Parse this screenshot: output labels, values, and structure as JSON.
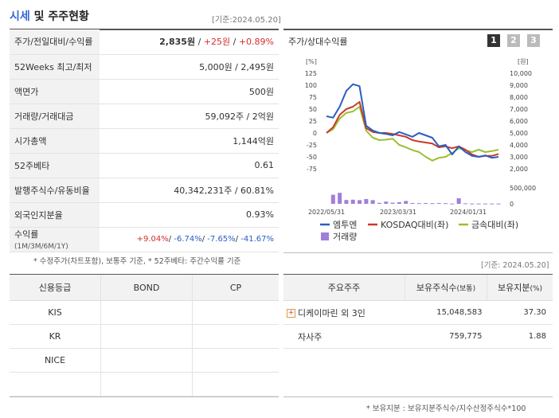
{
  "header": {
    "title_main": "시세",
    "title_rest": " 및 주주현황",
    "base_date": "[기준:2024.05.20]"
  },
  "price_table": {
    "rows": [
      {
        "label": "주가/전일대비/수익률",
        "price": "2,835원",
        "sep1": " / ",
        "change": "+25원",
        "sep2": " / ",
        "rate": "+0.89%"
      },
      {
        "label": "52Weeks 최고/최저",
        "value": "5,000원 / 2,495원"
      },
      {
        "label": "액면가",
        "value": "500원"
      },
      {
        "label": "거래량/거래대금",
        "value": "59,092주 / 2억원"
      },
      {
        "label": "시가총액",
        "value": "1,144억원"
      },
      {
        "label": "52주베타",
        "value": "0.61"
      },
      {
        "label": "발행주식수/유동비율",
        "value": "40,342,231주 / 60.81%"
      },
      {
        "label": "외국인지분율",
        "value": "0.93%"
      }
    ],
    "returns": {
      "label": "수익률",
      "label_sub": "(1M/3M/6M/1Y)",
      "r1": "+9.04%",
      "r2": "-6.74%",
      "r3": "-7.65%",
      "r4": "-41.67%",
      "sep": "/ "
    },
    "note": "* 수정주가(차트포함), 보통주 기준, * 52주베타: 주간수익률 기준"
  },
  "chart": {
    "title": "주가/상대수익률",
    "pages": [
      "1",
      "2",
      "3"
    ],
    "colors": {
      "stock": "#2a5dc4",
      "kosdaq": "#c83a2a",
      "sector": "#9bbf2e",
      "volume": "#a07fd9"
    },
    "left_unit": "[%]",
    "right_unit": "[원]",
    "left_ticks": [
      "125",
      "100",
      "75",
      "50",
      "25",
      "0",
      "-25",
      "-50",
      "-75"
    ],
    "right_ticks": [
      "10,000",
      "9,000",
      "8,000",
      "7,000",
      "6,000",
      "5,000",
      "4,000",
      "3,000",
      "2,000"
    ],
    "vol_tick": "500,000",
    "vol_zero": "0",
    "x_ticks": [
      "2022/05/31",
      "2023/03/31",
      "2024/01/31"
    ],
    "legend": [
      {
        "label": "엠투엔",
        "color": "#2a5dc4",
        "type": "line"
      },
      {
        "label": "KOSDAQ대비(좌)",
        "color": "#c83a2a",
        "type": "line"
      },
      {
        "label": "금속대비(좌)",
        "color": "#9bbf2e",
        "type": "line"
      },
      {
        "label": "거래량",
        "color": "#a07fd9",
        "type": "box"
      }
    ]
  },
  "chart_data": {
    "type": "line",
    "x_range": [
      "2022/04",
      "2024/05"
    ],
    "ylim_left": [
      -75,
      125
    ],
    "ylim_right": [
      2000,
      10000
    ],
    "series": [
      {
        "name": "엠투엔",
        "values": [
          35,
          32,
          55,
          88,
          102,
          98,
          15,
          5,
          0,
          -2,
          -5,
          2,
          -3,
          -8,
          0,
          -5,
          -10,
          -28,
          -25,
          -45,
          -28,
          -40,
          -48,
          -50,
          -47,
          -52,
          -50
        ]
      },
      {
        "name": "KOSDAQ대비(좌)",
        "values": [
          0,
          12,
          38,
          50,
          55,
          65,
          10,
          2,
          0,
          0,
          -2,
          -5,
          -8,
          -15,
          -18,
          -20,
          -22,
          -30,
          -28,
          -32,
          -28,
          -35,
          -45,
          -50,
          -48,
          -48,
          -44
        ]
      },
      {
        "name": "금속대비(좌)",
        "values": [
          0,
          8,
          30,
          42,
          45,
          55,
          5,
          -10,
          -15,
          -14,
          -12,
          -25,
          -30,
          -36,
          -40,
          -50,
          -58,
          -52,
          -50,
          -42,
          -32,
          -36,
          -40,
          -35,
          -40,
          -38,
          -35
        ]
      }
    ],
    "volume": [
      0,
      285000,
      345000,
      120000,
      130000,
      115000,
      150000,
      115000,
      30000,
      70000,
      35000,
      50000,
      90000,
      25000,
      20000,
      25000,
      20000,
      25000,
      20000,
      10000,
      175000,
      15000,
      10000,
      10000,
      10000,
      10000,
      10000
    ]
  },
  "credit_table": {
    "headers": [
      "신용등급",
      "BOND",
      "CP"
    ],
    "rows": [
      [
        "KIS",
        "",
        ""
      ],
      [
        "KR",
        "",
        ""
      ],
      [
        "NICE",
        "",
        ""
      ],
      [
        "",
        "",
        ""
      ]
    ]
  },
  "shareholders": {
    "base_date": "[기준: 2024.05.20]",
    "headers": {
      "holder": "주요주주",
      "shares": "보유주식수",
      "shares_unit": "(보통)",
      "ratio": "보유지분",
      "ratio_unit": "(%)"
    },
    "rows": [
      {
        "name": "디케이마린 외 3인",
        "shares": "15,048,583",
        "ratio": "37.30",
        "expand": "+"
      },
      {
        "name": "자사주",
        "shares": "759,775",
        "ratio": "1.88",
        "expand": ""
      }
    ],
    "note": "* 보유지분 : 보유지분주식수/지수산정주식수*100"
  }
}
